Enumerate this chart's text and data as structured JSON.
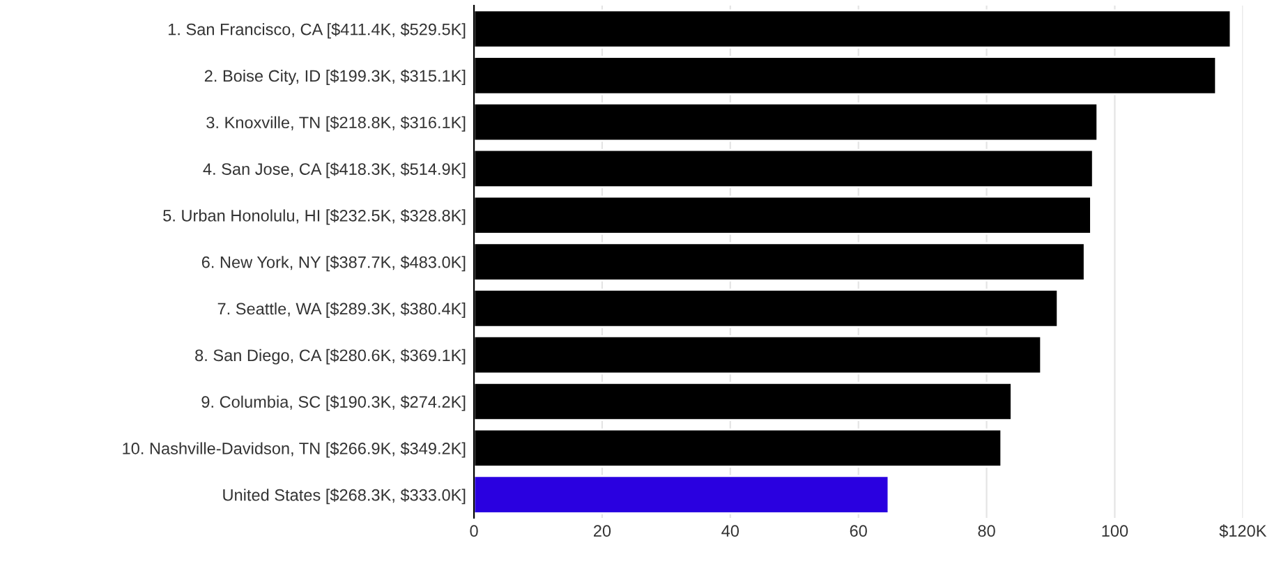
{
  "chart_data": {
    "type": "bar",
    "orientation": "horizontal",
    "categories": [
      "1. San Francisco, CA [$411.4K, $529.5K]",
      "2. Boise City, ID [$199.3K, $315.1K]",
      "3. Knoxville, TN [$218.8K, $316.1K]",
      "4. San Jose, CA [$418.3K, $514.9K]",
      "5. Urban Honolulu, HI [$232.5K, $328.8K]",
      "6. New York, NY [$387.7K, $483.0K]",
      "7. Seattle, WA [$289.3K, $380.4K]",
      "8. San Diego, CA [$280.6K, $369.1K]",
      "9. Columbia, SC [$190.3K, $274.2K]",
      "10. Nashville-Davidson, TN [$266.9K, $349.2K]",
      "United States [$268.3K, $333.0K]"
    ],
    "values": [
      118.1,
      115.8,
      97.3,
      96.6,
      96.3,
      95.3,
      91.1,
      88.5,
      83.9,
      82.3,
      64.7
    ],
    "colors": [
      "#000000",
      "#000000",
      "#000000",
      "#000000",
      "#000000",
      "#000000",
      "#000000",
      "#000000",
      "#000000",
      "#000000",
      "#2a00e0"
    ],
    "xlim": [
      0,
      120
    ],
    "xticks": [
      0,
      20,
      40,
      60,
      80,
      100,
      {
        "value": 120,
        "label": "$120K"
      }
    ],
    "grid": "x"
  }
}
